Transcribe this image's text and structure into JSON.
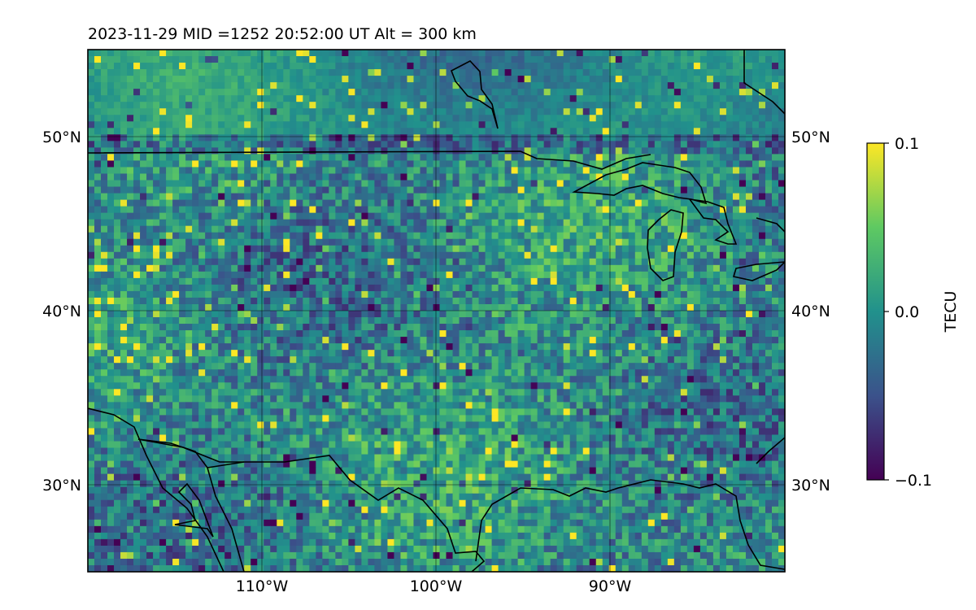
{
  "title": "2023-11-29  MID =1252    20:52:00  UT  Alt = 300 km",
  "map": {
    "extent": {
      "lon_min": -120,
      "lon_max": -80,
      "lat_min": 25,
      "lat_max": 55
    },
    "gridlines": {
      "lon": [
        -110,
        -100,
        -90
      ],
      "lat": [
        30,
        40,
        50
      ]
    },
    "lat_labels": [
      "30°N",
      "40°N",
      "50°N"
    ],
    "lon_labels": [
      "110°W",
      "100°W",
      "90°W"
    ]
  },
  "colorbar": {
    "label": "TECU",
    "vmin": -0.1,
    "vmax": 0.1,
    "ticks": [
      -0.1,
      0.0,
      0.1
    ],
    "tick_labels": [
      "−0.1",
      "0.0",
      "0.1"
    ],
    "colormap": "viridis",
    "colors": [
      "#440154",
      "#3b528b",
      "#21918c",
      "#5ec962",
      "#fde725"
    ]
  },
  "colors": {
    "coastline": "#000000",
    "grid": "#000000",
    "frame": "#000000"
  }
}
